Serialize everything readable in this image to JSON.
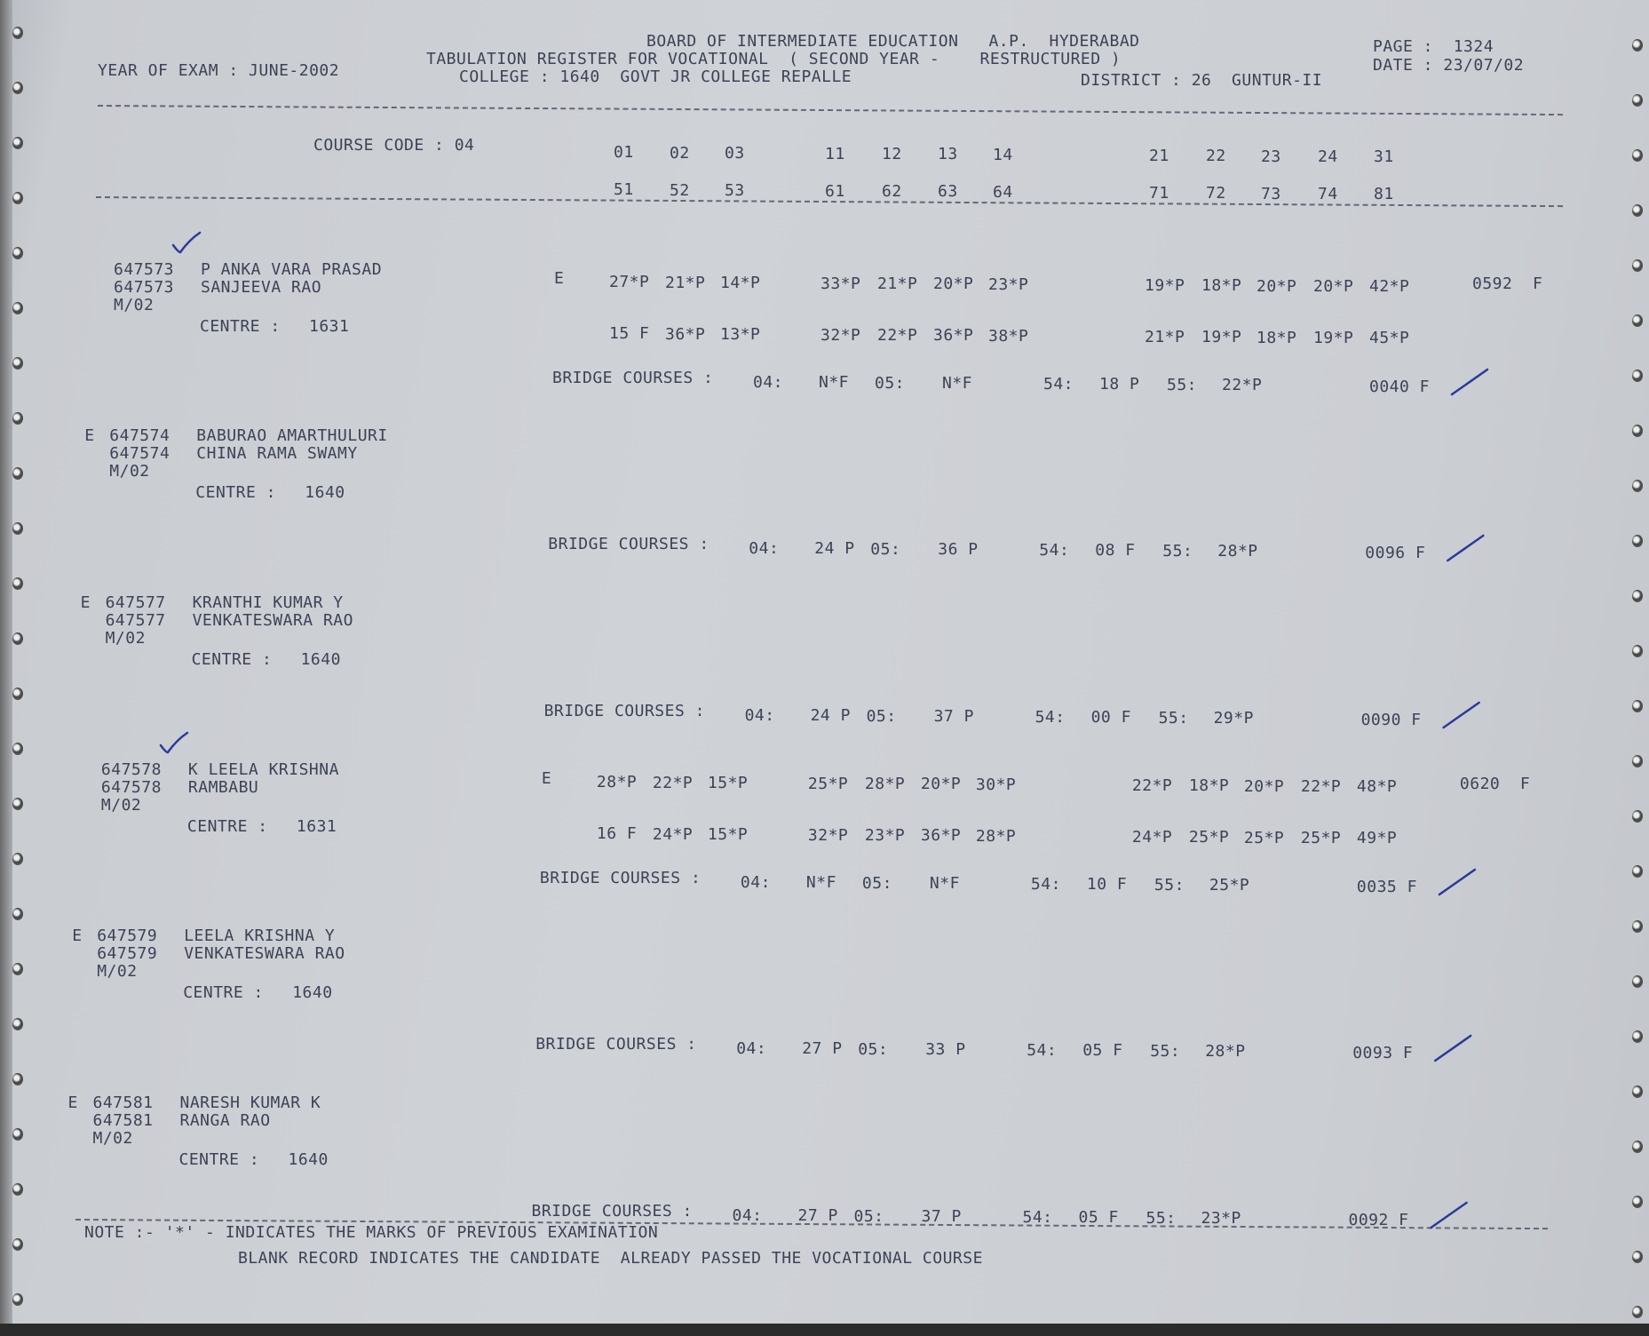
{
  "header": {
    "board": "BOARD OF INTERMEDIATE EDUCATION   A.P.  HYDERABAD",
    "register": "TABULATION REGISTER FOR VOCATIONAL  ( SECOND YEAR -    RESTRUCTURED )",
    "college": "COLLEGE : 1640  GOVT JR COLLEGE REPALLE",
    "district": "DISTRICT : 26  GUNTUR-II",
    "year_of_exam": "YEAR OF EXAM : JUNE-2002",
    "page": "PAGE :  1324",
    "date": "DATE : 23/07/02"
  },
  "columns": {
    "course_code": "COURSE CODE : 04",
    "row1": [
      "01",
      "02",
      "03",
      "11",
      "12",
      "13",
      "14",
      "21",
      "22",
      "23",
      "24",
      "31"
    ],
    "row2": [
      "51",
      "52",
      "53",
      "61",
      "62",
      "63",
      "64",
      "71",
      "72",
      "73",
      "74",
      "81"
    ]
  },
  "bridge_label": "BRIDGE COURSES :",
  "bridge_codes": [
    "04:",
    "05:",
    "54:",
    "55:"
  ],
  "centre_label": "CENTRE :",
  "records": [
    {
      "prefix": "",
      "id": "647573",
      "name": "P ANKA VARA PRASAD",
      "father": "SANJEEVA RAO",
      "code": "M/02",
      "centre": "1631",
      "status": "E",
      "marks1": [
        "27*P",
        "21*P",
        "14*P",
        "33*P",
        "21*P",
        "20*P",
        "23*P",
        "19*P",
        "18*P",
        "20*P",
        "20*P",
        "42*P"
      ],
      "marks2": [
        "15 F",
        "36*P",
        "13*P",
        "32*P",
        "22*P",
        "36*P",
        "38*P",
        "21*P",
        "19*P",
        "18*P",
        "19*P",
        "45*P"
      ],
      "total": "0592  F",
      "bridge": [
        "N*F",
        "N*F",
        "18 P",
        "22*P"
      ],
      "bridge_total": "0040 F",
      "checked": true
    },
    {
      "prefix": "E",
      "id": "647574",
      "name": "BABURAO AMARTHULURI",
      "father": "CHINA RAMA SWAMY",
      "code": "M/02",
      "centre": "1640",
      "status": "",
      "marks1": [],
      "marks2": [],
      "total": "",
      "bridge": [
        "24 P",
        "36 P",
        "08 F",
        "28*P"
      ],
      "bridge_total": "0096 F",
      "checked": false
    },
    {
      "prefix": "E",
      "id": "647577",
      "name": "KRANTHI KUMAR Y",
      "father": "VENKATESWARA RAO",
      "code": "M/02",
      "centre": "1640",
      "status": "",
      "marks1": [],
      "marks2": [],
      "total": "",
      "bridge": [
        "24 P",
        "37 P",
        "00 F",
        "29*P"
      ],
      "bridge_total": "0090 F",
      "checked": false
    },
    {
      "prefix": "",
      "id": "647578",
      "name": "K LEELA KRISHNA",
      "father": "RAMBABU",
      "code": "M/02",
      "centre": "1631",
      "status": "E",
      "marks1": [
        "28*P",
        "22*P",
        "15*P",
        "25*P",
        "28*P",
        "20*P",
        "30*P",
        "22*P",
        "18*P",
        "20*P",
        "22*P",
        "48*P"
      ],
      "marks2": [
        "16 F",
        "24*P",
        "15*P",
        "32*P",
        "23*P",
        "36*P",
        "28*P",
        "24*P",
        "25*P",
        "25*P",
        "25*P",
        "49*P"
      ],
      "total": "0620  F",
      "bridge": [
        "N*F",
        "N*F",
        "10 F",
        "25*P"
      ],
      "bridge_total": "0035 F",
      "checked": true
    },
    {
      "prefix": "E",
      "id": "647579",
      "name": "LEELA KRISHNA Y",
      "father": "VENKATESWARA RAO",
      "code": "M/02",
      "centre": "1640",
      "status": "",
      "marks1": [],
      "marks2": [],
      "total": "",
      "bridge": [
        "27 P",
        "33 P",
        "05 F",
        "28*P"
      ],
      "bridge_total": "0093 F",
      "checked": false
    },
    {
      "prefix": "E",
      "id": "647581",
      "name": "NARESH KUMAR K",
      "father": "RANGA RAO",
      "code": "M/02",
      "centre": "1640",
      "status": "",
      "marks1": [],
      "marks2": [],
      "total": "",
      "bridge": [
        "27 P",
        "37 P",
        "05 F",
        "23*P"
      ],
      "bridge_total": "0092 F",
      "checked": false
    }
  ],
  "note": {
    "line1": "NOTE :- '*' - INDICATES THE MARKS OF PREVIOUS EXAMINATION",
    "line2": "BLANK RECORD INDICATES THE CANDIDATE  ALREADY PASSED THE VOCATIONAL COURSE"
  },
  "colors": {
    "ink": "#3d4256",
    "paper": "#cdd0d4",
    "pen": "#2a3a9a"
  }
}
